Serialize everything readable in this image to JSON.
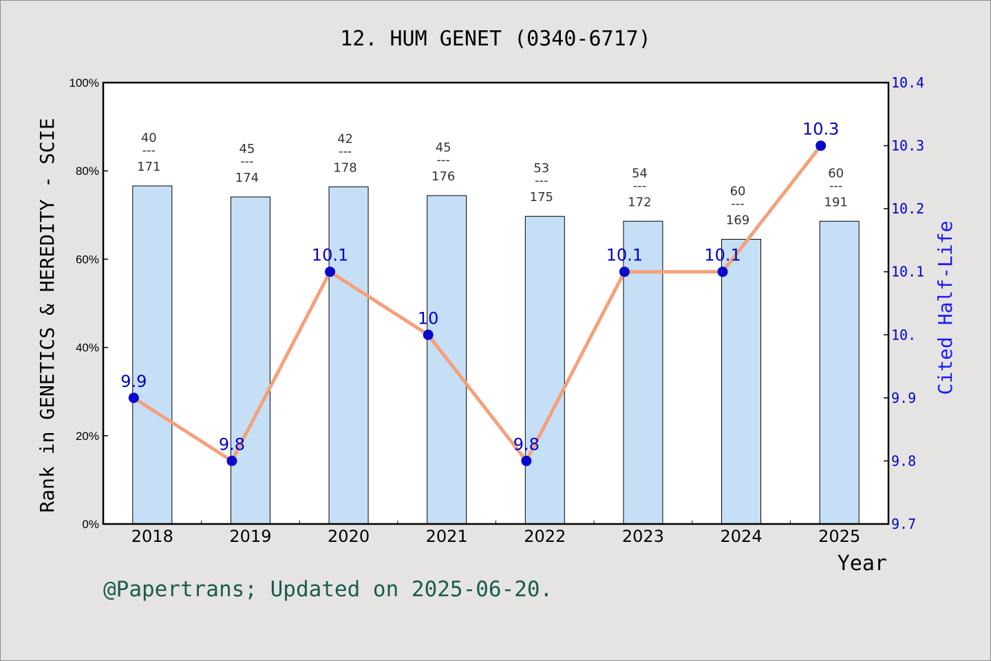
{
  "chart_data": {
    "type": "bar",
    "title": "12. HUM GENET (0340-6717)",
    "xlabel": "Year",
    "ylabel": "Rank in GENETICS & HEREDITY - SCIE",
    "y2label": "Cited Half-Life",
    "categories": [
      "2018",
      "2019",
      "2020",
      "2021",
      "2022",
      "2023",
      "2024",
      "2025"
    ],
    "ylim": [
      0,
      100
    ],
    "y_ticks": [
      "0%",
      "20%",
      "40%",
      "60%",
      "80%",
      "100%"
    ],
    "y2lim": [
      9.7,
      10.4
    ],
    "y2_ticks": [
      "9.7",
      "9.8",
      "9.9",
      "10.",
      "10.1",
      "10.2",
      "10.3",
      "10.4"
    ],
    "series": [
      {
        "type": "bar",
        "values": [
          76.6,
          74.1,
          76.4,
          74.4,
          69.7,
          68.6,
          64.5,
          68.6
        ],
        "rank": [
          "40",
          "45",
          "42",
          "45",
          "53",
          "54",
          "60",
          "60"
        ],
        "total": [
          "171",
          "174",
          "178",
          "176",
          "175",
          "172",
          "169",
          "191"
        ],
        "color": "#c5dff7"
      },
      {
        "type": "line",
        "axis": "right",
        "values": [
          9.9,
          9.8,
          10.1,
          10.0,
          9.8,
          10.1,
          10.1,
          10.3
        ],
        "labels": [
          "9.9",
          "9.8",
          "10.1",
          "10",
          "9.8",
          "10.1",
          "10.1",
          "10.3"
        ],
        "line_color": "#f5a07a",
        "marker_color": "#0a0acc"
      }
    ],
    "frac_separator": "---",
    "grid": false
  },
  "footer": "@Papertrans; Updated on 2025-06-20."
}
